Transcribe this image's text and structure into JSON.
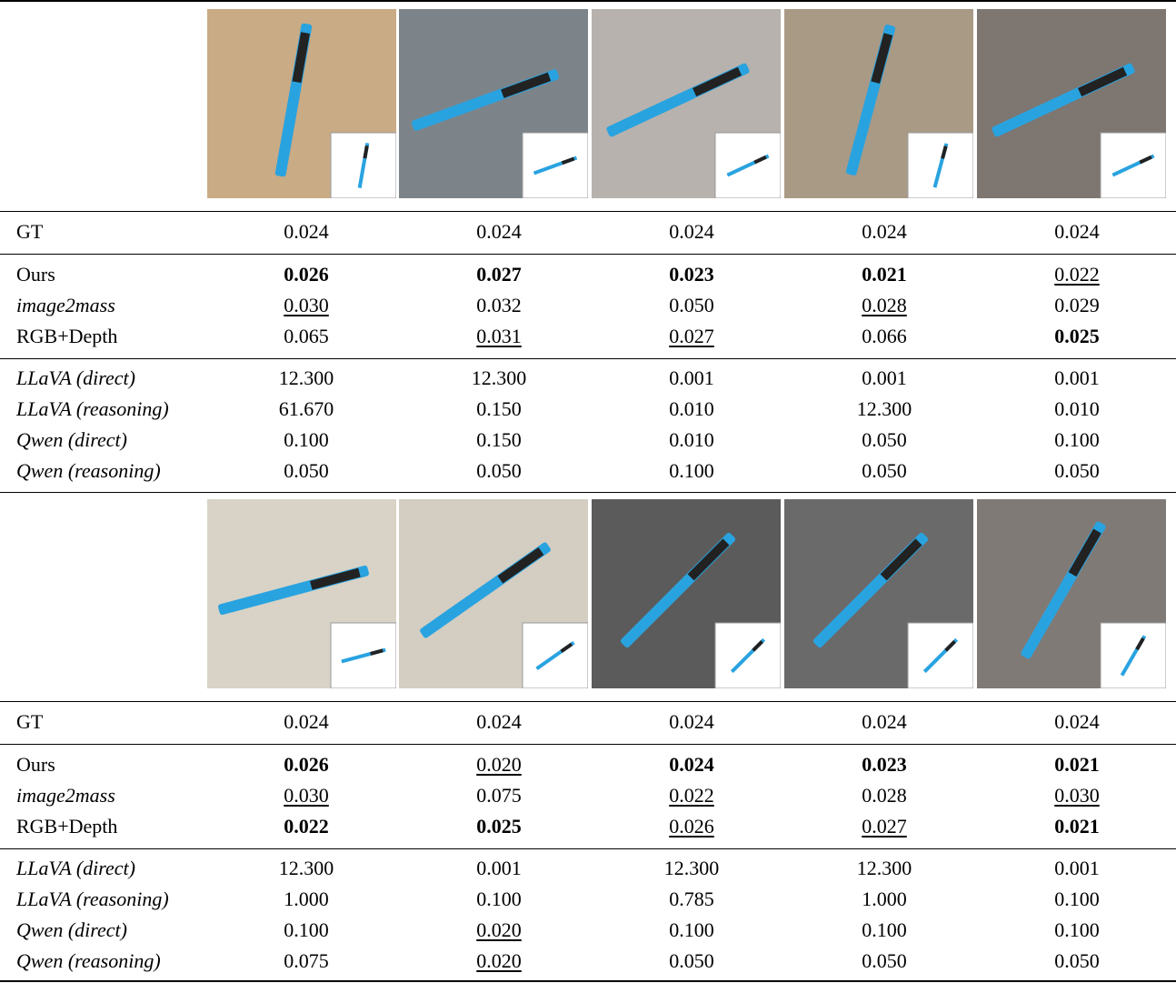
{
  "blocks": [
    {
      "rows": [
        {
          "label": "GT",
          "values": [
            "0.024",
            "0.024",
            "0.024",
            "0.024",
            "0.024"
          ]
        },
        {
          "label": "Ours",
          "values": [
            "0.026",
            "0.027",
            "0.023",
            "0.021",
            "0.022"
          ],
          "bold": [
            0,
            1,
            2,
            3
          ],
          "underline": [
            4
          ]
        },
        {
          "label": "image2mass",
          "italic": true,
          "values": [
            "0.030",
            "0.032",
            "0.050",
            "0.028",
            "0.029"
          ],
          "underline": [
            0,
            3
          ]
        },
        {
          "label": "RGB+Depth",
          "values": [
            "0.065",
            "0.031",
            "0.027",
            "0.066",
            "0.025"
          ],
          "bold": [
            4
          ],
          "underline": [
            1,
            2
          ]
        },
        {
          "label": "LLaVA (direct)",
          "italic": true,
          "values": [
            "12.300",
            "12.300",
            "0.001",
            "0.001",
            "0.001"
          ]
        },
        {
          "label": "LLaVA (reasoning)",
          "italic": true,
          "values": [
            "61.670",
            "0.150",
            "0.010",
            "12.300",
            "0.010"
          ]
        },
        {
          "label": "Qwen (direct)",
          "italic": true,
          "values": [
            "0.100",
            "0.150",
            "0.010",
            "0.050",
            "0.100"
          ]
        },
        {
          "label": "Qwen (reasoning)",
          "italic": true,
          "values": [
            "0.050",
            "0.050",
            "0.100",
            "0.050",
            "0.050"
          ]
        }
      ]
    },
    {
      "rows": [
        {
          "label": "GT",
          "values": [
            "0.024",
            "0.024",
            "0.024",
            "0.024",
            "0.024"
          ]
        },
        {
          "label": "Ours",
          "values": [
            "0.026",
            "0.020",
            "0.024",
            "0.023",
            "0.021"
          ],
          "bold": [
            0,
            2,
            3,
            4
          ],
          "underline": [
            1
          ]
        },
        {
          "label": "image2mass",
          "italic": true,
          "values": [
            "0.030",
            "0.075",
            "0.022",
            "0.028",
            "0.030"
          ],
          "underline": [
            0,
            2,
            4
          ]
        },
        {
          "label": "RGB+Depth",
          "values": [
            "0.022",
            "0.025",
            "0.026",
            "0.027",
            "0.021"
          ],
          "bold": [
            0,
            1,
            4
          ],
          "underline": [
            2,
            3
          ]
        },
        {
          "label": "LLaVA (direct)",
          "italic": true,
          "values": [
            "12.300",
            "0.001",
            "12.300",
            "12.300",
            "0.001"
          ]
        },
        {
          "label": "LLaVA (reasoning)",
          "italic": true,
          "values": [
            "1.000",
            "0.100",
            "0.785",
            "1.000",
            "0.100"
          ]
        },
        {
          "label": "Qwen (direct)",
          "italic": true,
          "values": [
            "0.100",
            "0.020",
            "0.100",
            "0.100",
            "0.100"
          ],
          "underline": [
            1
          ]
        },
        {
          "label": "Qwen (reasoning)",
          "italic": true,
          "values": [
            "0.075",
            "0.020",
            "0.050",
            "0.050",
            "0.050"
          ],
          "underline": [
            1
          ]
        }
      ]
    }
  ]
}
